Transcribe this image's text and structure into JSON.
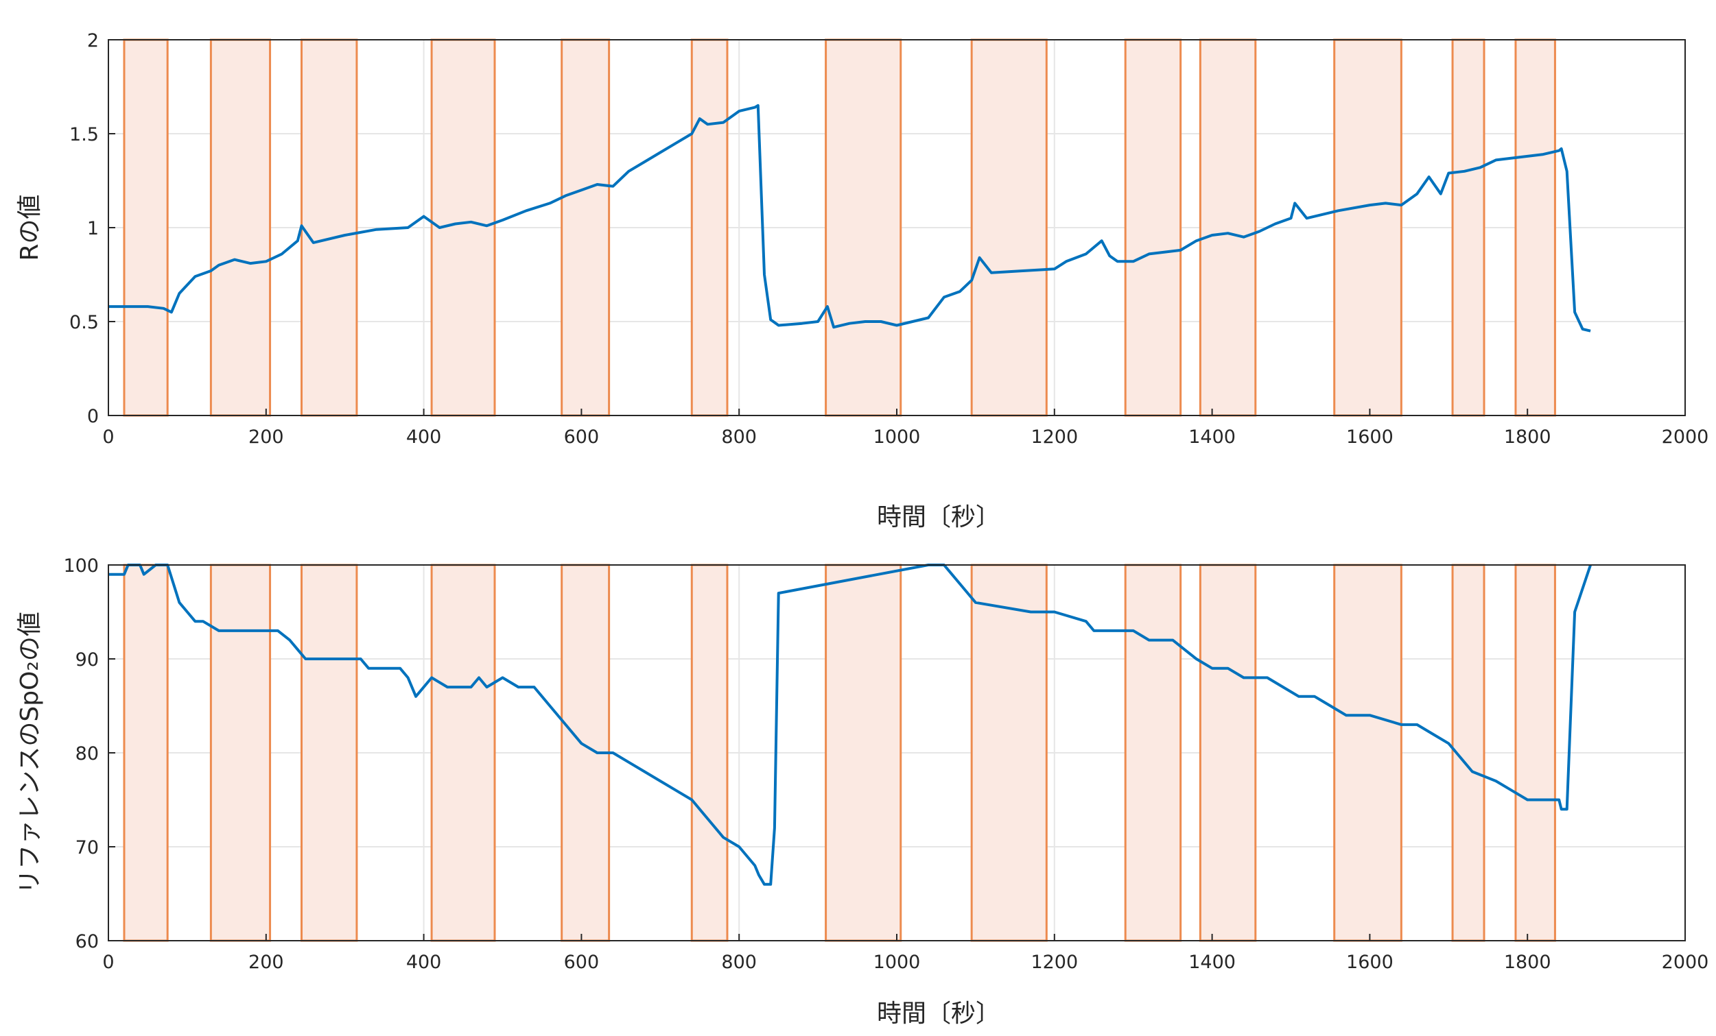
{
  "chart_data": [
    {
      "type": "line",
      "ylabel": "Rの値",
      "xlabel": "時間〔秒〕",
      "xlim": [
        0,
        2000
      ],
      "ylim": [
        0,
        2
      ],
      "x_ticks": [
        "0",
        "200",
        "400",
        "600",
        "800",
        "1000",
        "1200",
        "1400",
        "1600",
        "1800",
        "2000"
      ],
      "y_ticks": [
        "0",
        "0.5",
        "1",
        "1.5",
        "2"
      ],
      "y_tick_values": [
        0,
        0.5,
        1,
        1.5,
        2
      ],
      "grid": true,
      "series_color": "#0072BD",
      "series": [
        {
          "x": [
            0,
            50,
            70,
            80,
            90,
            110,
            130,
            140,
            160,
            180,
            200,
            220,
            240,
            245,
            260,
            300,
            340,
            380,
            400,
            420,
            440,
            460,
            480,
            500,
            530,
            560,
            580,
            600,
            620,
            640,
            660,
            680,
            700,
            720,
            740,
            750,
            760,
            780,
            800,
            820,
            824,
            832,
            840,
            850,
            880,
            900,
            912,
            920,
            940,
            960,
            980,
            1000,
            1020,
            1040,
            1060,
            1080,
            1095,
            1105,
            1120,
            1160,
            1200,
            1215,
            1240,
            1260,
            1270,
            1280,
            1300,
            1320,
            1340,
            1360,
            1380,
            1400,
            1420,
            1440,
            1460,
            1480,
            1500,
            1505,
            1520,
            1540,
            1560,
            1600,
            1620,
            1640,
            1660,
            1675,
            1690,
            1700,
            1720,
            1740,
            1760,
            1780,
            1800,
            1820,
            1840,
            1843,
            1850,
            1860,
            1870,
            1880
          ],
          "y": [
            0.58,
            0.58,
            0.57,
            0.55,
            0.65,
            0.74,
            0.77,
            0.8,
            0.83,
            0.81,
            0.82,
            0.86,
            0.93,
            1.01,
            0.92,
            0.96,
            0.99,
            1.0,
            1.06,
            1.0,
            1.02,
            1.03,
            1.01,
            1.04,
            1.09,
            1.13,
            1.17,
            1.2,
            1.23,
            1.22,
            1.3,
            1.35,
            1.4,
            1.45,
            1.5,
            1.58,
            1.55,
            1.56,
            1.62,
            1.64,
            1.65,
            0.75,
            0.51,
            0.48,
            0.49,
            0.5,
            0.58,
            0.47,
            0.49,
            0.5,
            0.5,
            0.48,
            0.5,
            0.52,
            0.63,
            0.66,
            0.72,
            0.84,
            0.76,
            0.77,
            0.78,
            0.82,
            0.86,
            0.93,
            0.85,
            0.82,
            0.82,
            0.86,
            0.87,
            0.88,
            0.93,
            0.96,
            0.97,
            0.95,
            0.98,
            1.02,
            1.05,
            1.13,
            1.05,
            1.07,
            1.09,
            1.12,
            1.13,
            1.12,
            1.18,
            1.27,
            1.18,
            1.29,
            1.3,
            1.32,
            1.36,
            1.37,
            1.38,
            1.39,
            1.41,
            1.42,
            1.3,
            0.55,
            0.46,
            0.45
          ]
        }
      ],
      "highlight_intervals": [
        [
          20,
          75
        ],
        [
          130,
          205
        ],
        [
          245,
          315
        ],
        [
          410,
          490
        ],
        [
          575,
          635
        ],
        [
          740,
          785
        ],
        [
          910,
          1005
        ],
        [
          1095,
          1190
        ],
        [
          1290,
          1360
        ],
        [
          1385,
          1455
        ],
        [
          1555,
          1640
        ],
        [
          1705,
          1745
        ],
        [
          1785,
          1835
        ]
      ],
      "highlight_fill": "#FBE9E2",
      "highlight_stroke": "#ED8B4F"
    },
    {
      "type": "line",
      "ylabel": "リファレンスのSpO₂の値",
      "xlabel": "時間〔秒〕",
      "xlim": [
        0,
        2000
      ],
      "ylim": [
        60,
        100
      ],
      "x_ticks": [
        "0",
        "200",
        "400",
        "600",
        "800",
        "1000",
        "1200",
        "1400",
        "1600",
        "1800",
        "2000"
      ],
      "y_ticks": [
        "60",
        "70",
        "80",
        "90",
        "100"
      ],
      "y_tick_values": [
        60,
        70,
        80,
        90,
        100
      ],
      "grid": true,
      "series_color": "#0072BD",
      "series": [
        {
          "x": [
            0,
            20,
            25,
            40,
            45,
            60,
            75,
            90,
            100,
            110,
            120,
            140,
            210,
            215,
            230,
            240,
            250,
            320,
            330,
            350,
            370,
            380,
            390,
            410,
            430,
            460,
            470,
            480,
            500,
            520,
            540,
            560,
            580,
            600,
            620,
            640,
            660,
            680,
            700,
            720,
            740,
            760,
            780,
            800,
            820,
            825,
            832,
            840,
            845,
            850,
            1040,
            1060,
            1070,
            1080,
            1090,
            1100,
            1170,
            1180,
            1200,
            1240,
            1250,
            1270,
            1300,
            1320,
            1350,
            1365,
            1380,
            1400,
            1420,
            1440,
            1470,
            1490,
            1510,
            1530,
            1550,
            1570,
            1600,
            1640,
            1660,
            1680,
            1700,
            1710,
            1720,
            1730,
            1760,
            1780,
            1800,
            1840,
            1843,
            1850,
            1860,
            1880
          ],
          "y": [
            99,
            99,
            100,
            100,
            99,
            100,
            100,
            96,
            95,
            94,
            94,
            93,
            93,
            93,
            92,
            91,
            90,
            90,
            89,
            89,
            89,
            88,
            86,
            88,
            87,
            87,
            88,
            87,
            88,
            87,
            87,
            85,
            83,
            81,
            80,
            80,
            79,
            78,
            77,
            76,
            75,
            73,
            71,
            70,
            68,
            67,
            66,
            66,
            72,
            97,
            100,
            100,
            99,
            98,
            97,
            96,
            95,
            95,
            95,
            94,
            93,
            93,
            93,
            92,
            92,
            91,
            90,
            89,
            89,
            88,
            88,
            87,
            86,
            86,
            85,
            84,
            84,
            83,
            83,
            82,
            81,
            80,
            79,
            78,
            77,
            76,
            75,
            75,
            74,
            74,
            95,
            100
          ]
        }
      ],
      "highlight_intervals": [
        [
          20,
          75
        ],
        [
          130,
          205
        ],
        [
          245,
          315
        ],
        [
          410,
          490
        ],
        [
          575,
          635
        ],
        [
          740,
          785
        ],
        [
          910,
          1005
        ],
        [
          1095,
          1190
        ],
        [
          1290,
          1360
        ],
        [
          1385,
          1455
        ],
        [
          1555,
          1640
        ],
        [
          1705,
          1745
        ],
        [
          1785,
          1835
        ]
      ],
      "highlight_fill": "#FBE9E2",
      "highlight_stroke": "#ED8B4F"
    }
  ]
}
